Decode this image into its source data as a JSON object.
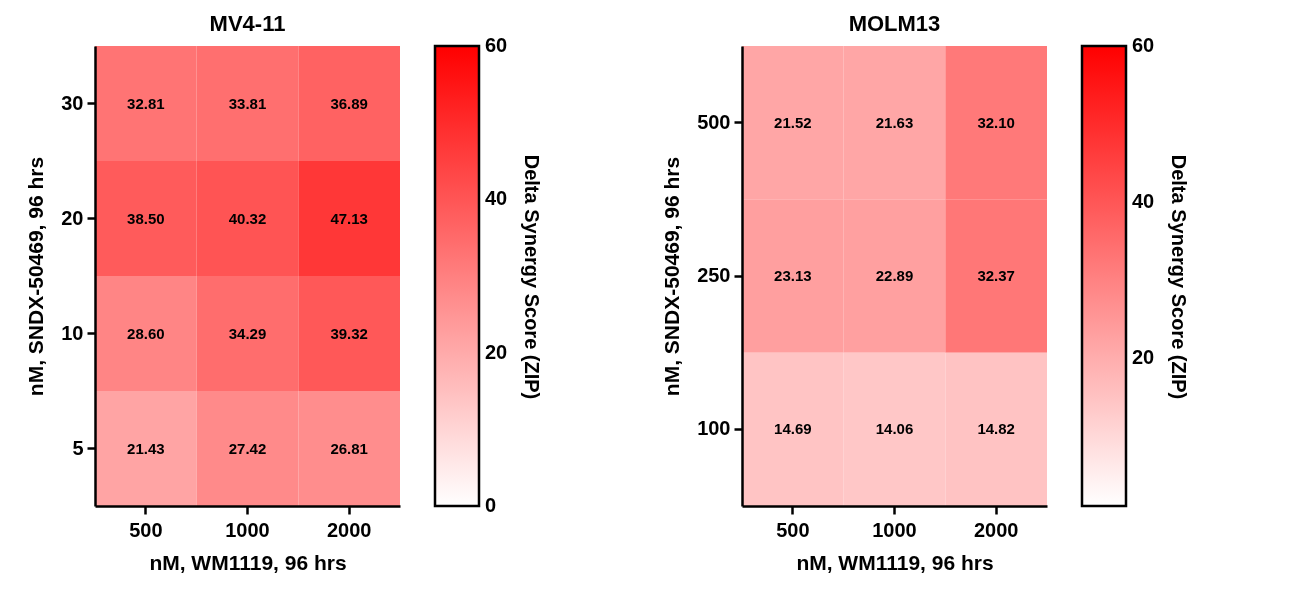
{
  "chart_data": [
    {
      "type": "heatmap",
      "title": "MV4-11",
      "xlabel": "nM, WM1119, 96 hrs",
      "ylabel": "nM, SNDX-50469, 96 hrs",
      "clabel": "Delta  Synergy Score (ZIP)",
      "categories": [
        "500",
        "1000",
        "2000"
      ],
      "y_categories": [
        "30",
        "20",
        "10",
        "5"
      ],
      "cells": [
        [
          32.81,
          33.81,
          36.89
        ],
        [
          38.5,
          40.32,
          47.13
        ],
        [
          28.6,
          34.29,
          39.32
        ],
        [
          21.43,
          27.42,
          26.81
        ]
      ],
      "cell_labels": [
        [
          "32.81",
          "33.81",
          "36.89"
        ],
        [
          "38.50",
          "40.32",
          "47.13"
        ],
        [
          "28.60",
          "34.29",
          "39.32"
        ],
        [
          "21.43",
          "27.42",
          "26.81"
        ]
      ],
      "data_labels": true,
      "clim": [
        0,
        60
      ],
      "cticks": [
        0,
        20,
        40,
        60
      ]
    },
    {
      "type": "heatmap",
      "title": "MOLM13",
      "xlabel": "nM, WM1119, 96 hrs",
      "ylabel": "nM, SNDX-50469, 96 hrs",
      "clabel": "Delta Synergy Score (ZIP)",
      "categories": [
        "500",
        "1000",
        "2000"
      ],
      "y_categories": [
        "500",
        "250",
        "100"
      ],
      "cells": [
        [
          21.52,
          21.63,
          32.1
        ],
        [
          23.13,
          22.89,
          32.37
        ],
        [
          14.69,
          14.06,
          14.82
        ]
      ],
      "cell_labels": [
        [
          "21.52",
          "21.63",
          "32.10"
        ],
        [
          "23.13",
          "22.89",
          "32.37"
        ],
        [
          "14.69",
          "14.06",
          "14.82"
        ]
      ],
      "data_labels": true,
      "clim": [
        1,
        60
      ],
      "cticks": [
        20,
        40,
        60
      ]
    }
  ]
}
